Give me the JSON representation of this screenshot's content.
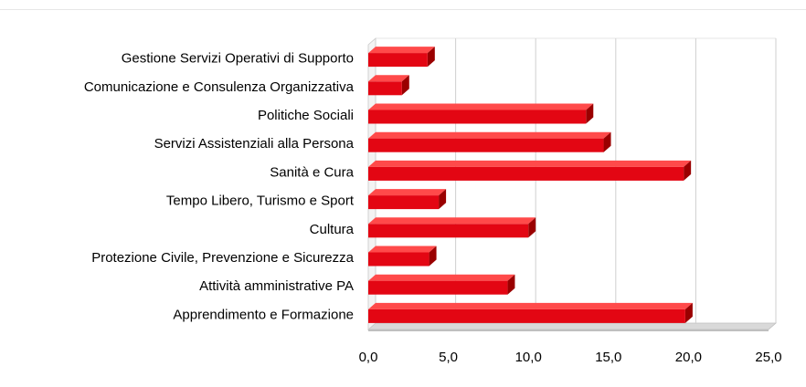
{
  "chart_data": {
    "type": "bar",
    "orientation": "horizontal",
    "style": "3d",
    "bar_color": "#e30613",
    "categories": [
      "Gestione Servizi Operativi di Supporto",
      "Comunicazione e Consulenza Organizzativa",
      "Politiche Sociali",
      "Servizi Assistenziali alla Persona",
      "Sanità e Cura",
      "Tempo Libero, Turismo e Sport",
      "Cultura",
      "Protezione Civile,  Prevenzione e Sicurezza",
      "Attività amministrative PA",
      "Apprendimento e Formazione"
    ],
    "values": [
      3.7,
      2.1,
      13.6,
      14.7,
      19.7,
      4.4,
      10.0,
      3.8,
      8.7,
      19.8
    ],
    "xlim": [
      0,
      25
    ],
    "xticks": [
      "0,0",
      "5,0",
      "10,0",
      "15,0",
      "20,0",
      "25,0"
    ],
    "grid": true,
    "title": "",
    "xlabel": "",
    "ylabel": ""
  }
}
